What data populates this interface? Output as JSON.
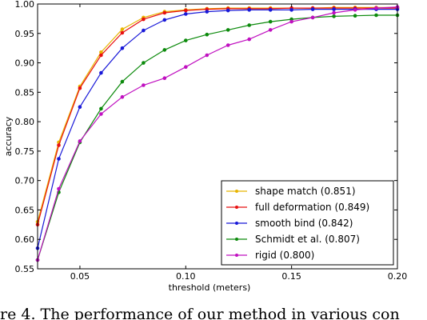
{
  "chart_data": {
    "type": "line",
    "title": "",
    "xlabel": "threshold (meters)",
    "ylabel": "accuracy",
    "xlim": [
      0.03,
      0.2
    ],
    "ylim": [
      0.55,
      1.0
    ],
    "x_ticks": [
      "0.05",
      "0.10",
      "0.15",
      "0.20"
    ],
    "x_tick_values": [
      0.05,
      0.1,
      0.15,
      0.2
    ],
    "y_ticks": [
      "0.55",
      "0.60",
      "0.65",
      "0.70",
      "0.75",
      "0.80",
      "0.85",
      "0.90",
      "0.95",
      "1.00"
    ],
    "y_tick_values": [
      0.55,
      0.6,
      0.65,
      0.7,
      0.75,
      0.8,
      0.85,
      0.9,
      0.95,
      1.0
    ],
    "grid": false,
    "legend_position": "bottom-right",
    "x": [
      0.03,
      0.04,
      0.05,
      0.06,
      0.07,
      0.08,
      0.09,
      0.1,
      0.11,
      0.12,
      0.13,
      0.14,
      0.15,
      0.16,
      0.17,
      0.18,
      0.19,
      0.2
    ],
    "series": [
      {
        "name": "shape match (0.851)",
        "color": "#e8b400",
        "values": [
          0.63,
          0.765,
          0.86,
          0.918,
          0.957,
          0.977,
          0.987,
          0.99,
          0.992,
          0.993,
          0.993,
          0.993,
          0.993,
          0.993,
          0.994,
          0.994,
          0.994,
          0.994
        ]
      },
      {
        "name": "full deformation (0.849)",
        "color": "#e81010",
        "values": [
          0.625,
          0.76,
          0.857,
          0.913,
          0.951,
          0.974,
          0.985,
          0.989,
          0.991,
          0.992,
          0.992,
          0.992,
          0.993,
          0.993,
          0.993,
          0.993,
          0.993,
          0.993
        ]
      },
      {
        "name": "smooth bind (0.842)",
        "color": "#1818d8",
        "values": [
          0.585,
          0.737,
          0.825,
          0.883,
          0.925,
          0.955,
          0.973,
          0.983,
          0.987,
          0.989,
          0.99,
          0.99,
          0.99,
          0.991,
          0.991,
          0.991,
          0.991,
          0.991
        ]
      },
      {
        "name": "Schmidt et al. (0.807)",
        "color": "#0c8a0c",
        "values": [
          0.565,
          0.68,
          0.765,
          0.822,
          0.868,
          0.9,
          0.922,
          0.938,
          0.948,
          0.956,
          0.964,
          0.97,
          0.974,
          0.977,
          0.979,
          0.98,
          0.981,
          0.981
        ]
      },
      {
        "name": "rigid (0.800)",
        "color": "#c010c0",
        "values": [
          0.565,
          0.686,
          0.767,
          0.813,
          0.842,
          0.862,
          0.874,
          0.893,
          0.913,
          0.93,
          0.94,
          0.956,
          0.97,
          0.977,
          0.985,
          0.99,
          0.993,
          0.995
        ]
      }
    ]
  },
  "caption": {
    "text": "re 4. The performance of our method in various con"
  }
}
